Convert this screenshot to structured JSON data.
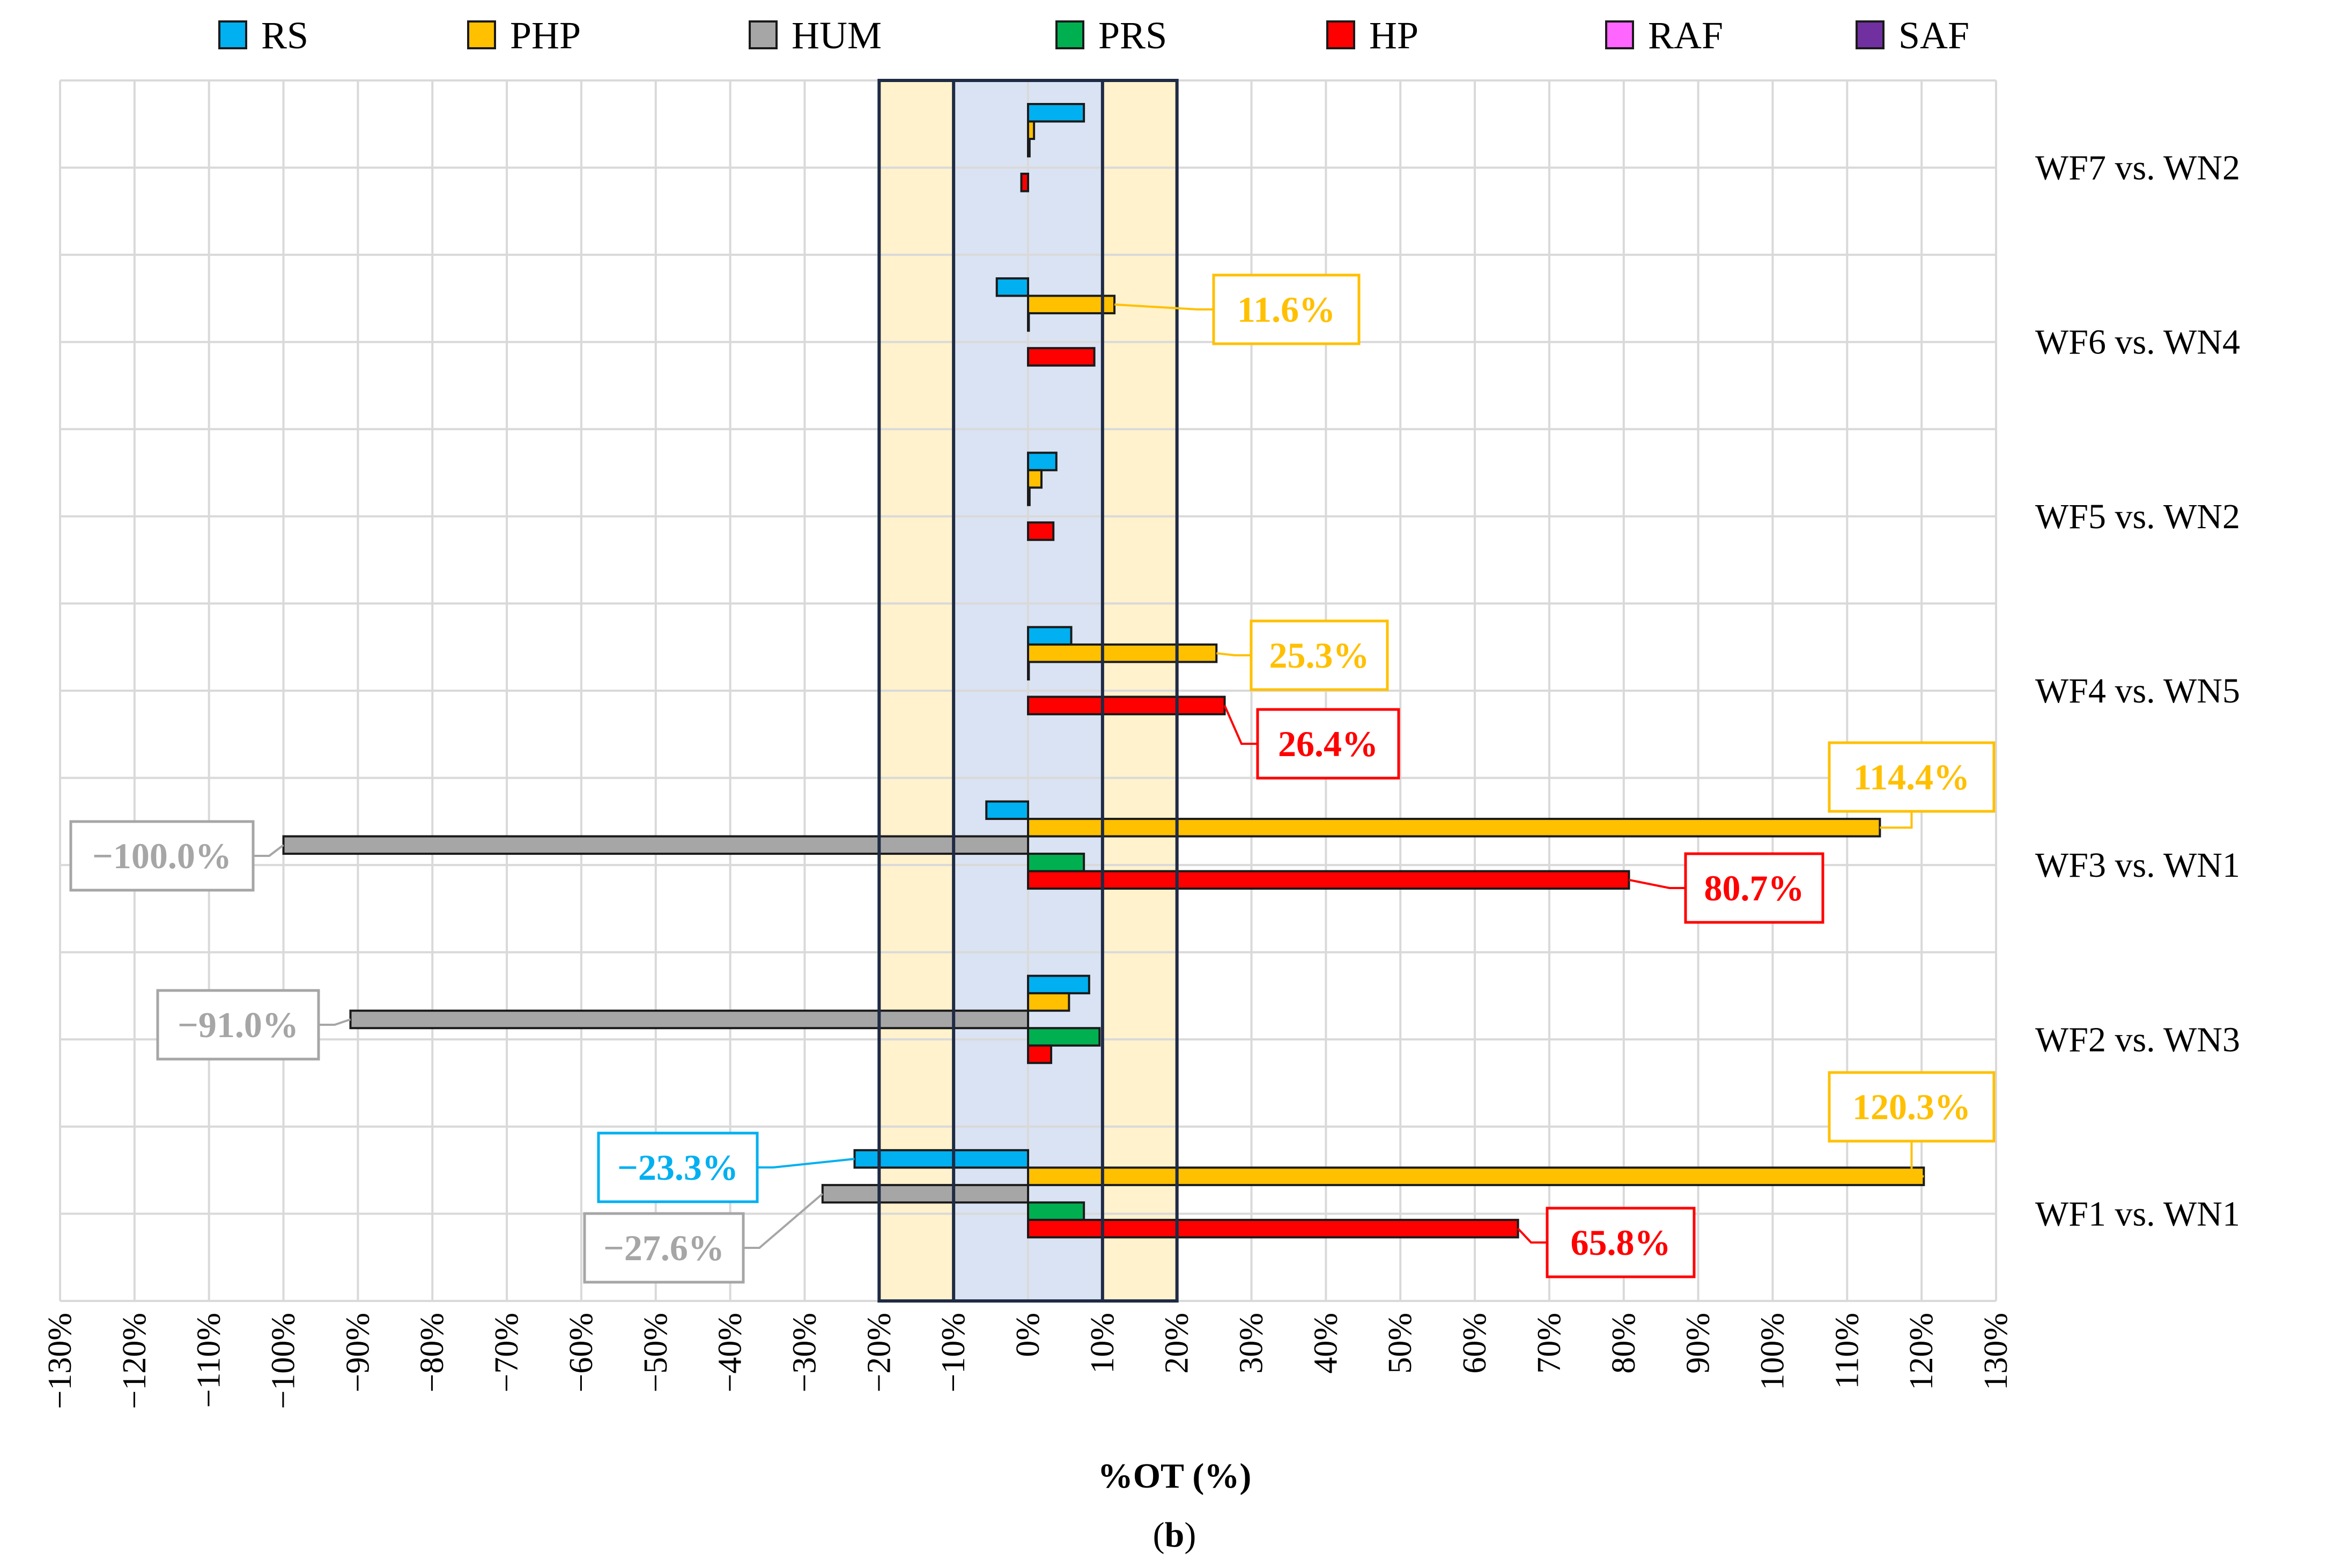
{
  "chart_data": {
    "type": "bar",
    "orientation": "horizontal",
    "xlabel": "%OT (%)",
    "caption_open": "(",
    "caption_letter": "b",
    "caption_close": ")",
    "xlim": [
      -130,
      130
    ],
    "x_tick_step": 10,
    "x_tick_labels": [
      "−130%",
      "−120%",
      "−110%",
      "−100%",
      "−90%",
      "−80%",
      "−70%",
      "−60%",
      "−50%",
      "−40%",
      "−30%",
      "−20%",
      "−10%",
      "0%",
      "10%",
      "20%",
      "30%",
      "40%",
      "50%",
      "60%",
      "70%",
      "80%",
      "90%",
      "100%",
      "110%",
      "120%",
      "130%"
    ],
    "bands": [
      {
        "name": "outer-band",
        "from": -20,
        "to": 20,
        "fill": "#FFF2CC"
      },
      {
        "name": "inner-band",
        "from": -10,
        "to": 10,
        "fill": "#DAE3F3"
      }
    ],
    "categories": [
      "WF7 vs. WN2",
      "WF6 vs. WN4",
      "WF5 vs. WN2",
      "WF4 vs. WN5",
      "WF3 vs. WN1",
      "WF2 vs. WN3",
      "WF1 vs. WN1"
    ],
    "series": [
      {
        "name": "RS",
        "color": "#00B0F0",
        "label_color": "#00B0F0",
        "values": [
          7.5,
          -4.2,
          3.8,
          5.8,
          -5.6,
          8.2,
          -23.3
        ]
      },
      {
        "name": "PHP",
        "color": "#FFC000",
        "label_color": "#FFC000",
        "values": [
          0.8,
          11.6,
          1.8,
          25.3,
          114.4,
          5.5,
          120.3
        ]
      },
      {
        "name": "HUM",
        "color": "#A6A6A6",
        "label_color": "#A6A6A6",
        "values": [
          0.2,
          0.1,
          0.2,
          0.1,
          -100.0,
          -91.0,
          -27.6
        ]
      },
      {
        "name": "PRS",
        "color": "#00B050",
        "label_color": "#00B050",
        "values": [
          0.0,
          0.0,
          0.0,
          0.0,
          7.5,
          9.6,
          7.5
        ]
      },
      {
        "name": "HP",
        "color": "#FF0000",
        "label_color": "#FF0000",
        "values": [
          -0.9,
          8.9,
          3.4,
          26.4,
          80.7,
          3.1,
          65.8
        ]
      },
      {
        "name": "RAF",
        "color": "#FF66FF",
        "label_color": "#FF66FF",
        "values": [
          0,
          0,
          0,
          0,
          0,
          0,
          0
        ]
      },
      {
        "name": "SAF",
        "color": "#7030A0",
        "label_color": "#7030A0",
        "values": [
          0,
          0,
          0,
          0,
          0,
          0,
          0
        ]
      }
    ],
    "data_labels": [
      {
        "category": "WF6 vs. WN4",
        "series": "PHP",
        "text": "11.6%"
      },
      {
        "category": "WF4 vs. WN5",
        "series": "PHP",
        "text": "25.3%"
      },
      {
        "category": "WF4 vs. WN5",
        "series": "HP",
        "text": "26.4%"
      },
      {
        "category": "WF3 vs. WN1",
        "series": "PHP",
        "text": "114.4%"
      },
      {
        "category": "WF3 vs. WN1",
        "series": "HUM",
        "text": "−100.0%"
      },
      {
        "category": "WF3 vs. WN1",
        "series": "HP",
        "text": "80.7%"
      },
      {
        "category": "WF2 vs. WN3",
        "series": "HUM",
        "text": "−91.0%"
      },
      {
        "category": "WF1 vs. WN1",
        "series": "PHP",
        "text": "120.3%"
      },
      {
        "category": "WF1 vs. WN1",
        "series": "RS",
        "text": "−23.3%"
      },
      {
        "category": "WF1 vs. WN1",
        "series": "HUM",
        "text": "−27.6%"
      },
      {
        "category": "WF1 vs. WN1",
        "series": "HP",
        "text": "65.8%"
      }
    ]
  }
}
